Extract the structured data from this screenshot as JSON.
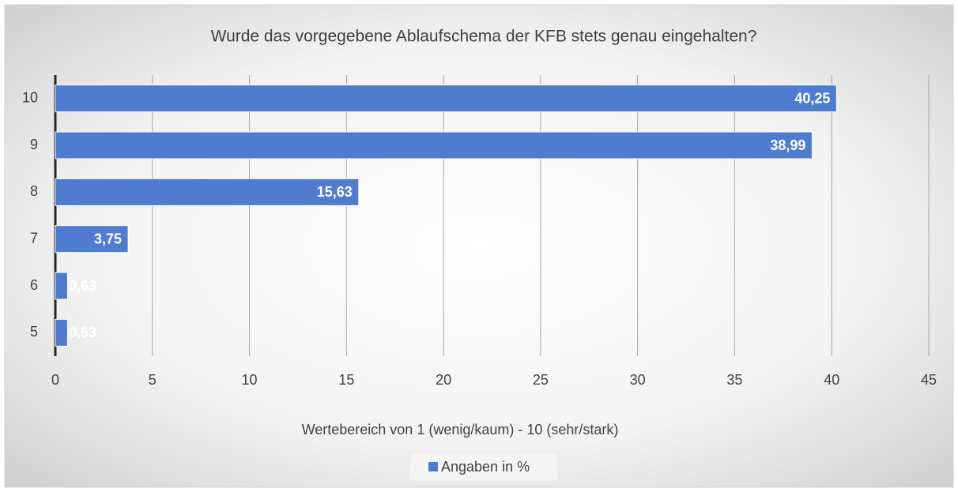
{
  "chart_data": {
    "type": "bar",
    "orientation": "horizontal",
    "title": "Wurde das vorgegebene Ablaufschema der KFB stets genau eingehalten?",
    "x_label": "Wertebereich von 1 (wenig/kaum) - 10 (sehr/stark)",
    "categories": [
      "10",
      "9",
      "8",
      "7",
      "6",
      "5"
    ],
    "series": [
      {
        "name": "Angaben in %",
        "color": "#4f7ccf",
        "values": [
          40.25,
          38.99,
          15.63,
          3.75,
          0.63,
          0.63
        ],
        "value_labels": [
          "40,25",
          "38,99",
          "15,63",
          "3,75",
          "0,63",
          "0,63"
        ]
      }
    ],
    "xlim": [
      0,
      45
    ],
    "xticks": [
      0,
      5,
      10,
      15,
      20,
      25,
      30,
      35,
      40,
      45
    ],
    "grid": true,
    "legend": "bottom"
  }
}
